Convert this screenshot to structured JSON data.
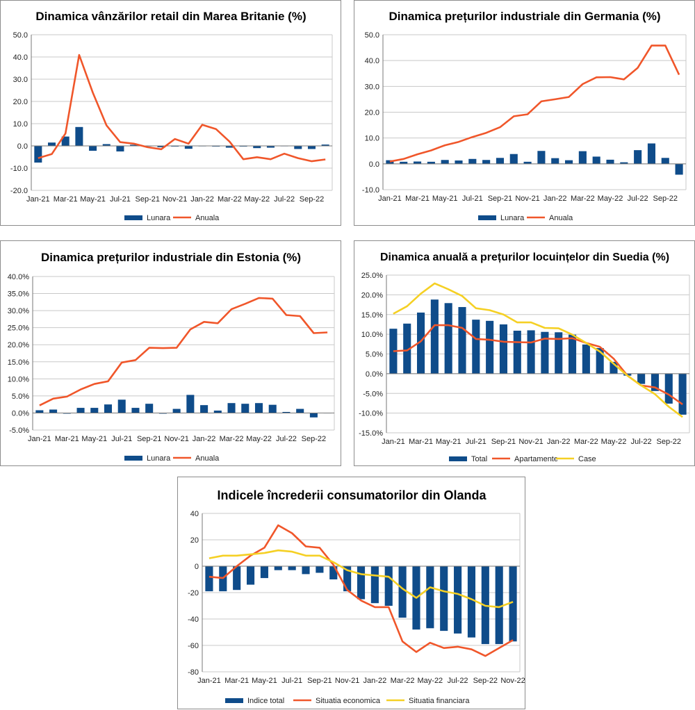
{
  "colors": {
    "bar": "#0f4c8a",
    "red": "#f0562a",
    "yellow": "#f5d024",
    "grid": "#c8c8c8",
    "axis": "#777777"
  },
  "chart_data": [
    {
      "id": "uk",
      "type": "bar+line",
      "title": "Dinamica vânzărilor retail din Marea Britanie (%)",
      "ylim": [
        -20,
        50
      ],
      "ystep": 10,
      "ydecimals": 1,
      "ysuffix": "",
      "x_tick_labels": [
        "Jan-21",
        "Mar-21",
        "May-21",
        "Jul-21",
        "Sep-21",
        "Nov-21",
        "Jan-22",
        "Mar-22",
        "May-22",
        "Jul-22",
        "Sep-22"
      ],
      "n_points": 22,
      "bars": [
        {
          "name": "Lunara",
          "values": [
            -7.5,
            1.5,
            4.2,
            8.5,
            -2.2,
            0.8,
            -2.5,
            0.5,
            -0.2,
            -0.6,
            -0.3,
            -1.3,
            -0.2,
            -0.3,
            -0.8,
            -0.3,
            -1.0,
            -0.8,
            -0.1,
            -1.4,
            -1.4,
            0.6
          ]
        }
      ],
      "lines": [
        {
          "name": "Anuala",
          "color": "red",
          "values": [
            -5.5,
            -3.7,
            5.6,
            40.9,
            23.9,
            9.2,
            1.7,
            1.0,
            -0.6,
            -1.5,
            3.1,
            1.0,
            9.5,
            7.6,
            1.9,
            -6.0,
            -5.1,
            -6.0,
            -3.5,
            -5.5,
            -6.9,
            -6.1
          ]
        }
      ],
      "legend": [
        "Lunara",
        "Anuala"
      ]
    },
    {
      "id": "germany",
      "type": "bar+line",
      "title": "Dinamica prețurilor industriale din Germania (%)",
      "ylim": [
        -10,
        50
      ],
      "ystep": 10,
      "ydecimals": 1,
      "ysuffix": "",
      "x_tick_labels": [
        "Jan-21",
        "Mar-21",
        "May-21",
        "Jul-21",
        "Sep-21",
        "Nov-21",
        "Jan-22",
        "Mar-22",
        "May-22",
        "Jul-22",
        "Sep-22"
      ],
      "n_points": 22,
      "bars": [
        {
          "name": "Lunara",
          "values": [
            1.4,
            0.8,
            0.9,
            0.8,
            1.5,
            1.3,
            1.9,
            1.5,
            2.3,
            3.8,
            0.8,
            5.0,
            2.2,
            1.4,
            4.9,
            2.8,
            1.6,
            0.6,
            5.3,
            7.9,
            2.3,
            -4.2
          ]
        }
      ],
      "lines": [
        {
          "name": "Anuala",
          "color": "red",
          "values": [
            0.9,
            1.9,
            3.7,
            5.2,
            7.2,
            8.5,
            10.4,
            12.0,
            14.2,
            18.4,
            19.2,
            24.2,
            25.0,
            25.9,
            30.9,
            33.5,
            33.6,
            32.7,
            37.2,
            45.8,
            45.8,
            34.5
          ]
        }
      ],
      "legend": [
        "Lunara",
        "Anuala"
      ]
    },
    {
      "id": "estonia",
      "type": "bar+line",
      "title": "Dinamica prețurilor industriale din Estonia (%)",
      "ylim": [
        -5,
        40
      ],
      "ystep": 5,
      "ydecimals": 1,
      "ysuffix": "%",
      "x_tick_labels": [
        "Jan-21",
        "Mar-21",
        "May-21",
        "Jul-21",
        "Sep-21",
        "Nov-21",
        "Jan-22",
        "Mar-22",
        "May-22",
        "Jul-22",
        "Sep-22"
      ],
      "n_points": 22,
      "bars": [
        {
          "name": "Lunara",
          "values": [
            0.8,
            1.0,
            -0.2,
            1.5,
            1.5,
            2.5,
            3.9,
            1.5,
            2.7,
            -0.2,
            1.2,
            5.3,
            2.3,
            0.7,
            2.9,
            2.7,
            2.9,
            2.4,
            0.3,
            1.2,
            -1.3,
            0.0
          ]
        }
      ],
      "lines": [
        {
          "name": "Anuala",
          "color": "red",
          "values": [
            2.2,
            4.2,
            4.8,
            6.9,
            8.5,
            9.3,
            14.8,
            15.5,
            19.1,
            19.0,
            19.1,
            24.5,
            26.7,
            26.3,
            30.4,
            32.0,
            33.7,
            33.5,
            28.7,
            28.4,
            23.4,
            23.6
          ]
        }
      ],
      "legend": [
        "Lunara",
        "Anuala"
      ]
    },
    {
      "id": "sweden",
      "type": "bar+line",
      "title": "Dinamica anuală a prețurilor locuințelor din Suedia (%)",
      "ylim": [
        -15,
        25
      ],
      "ystep": 5,
      "ydecimals": 1,
      "ysuffix": "%",
      "x_tick_labels": [
        "Jan-21",
        "Mar-21",
        "May-21",
        "Jul-21",
        "Sep-21",
        "Nov-21",
        "Jan-22",
        "Mar-22",
        "May-22",
        "Jul-22",
        "Sep-22"
      ],
      "n_points": 22,
      "bars": [
        {
          "name": "Total",
          "values": [
            11.4,
            12.7,
            15.5,
            18.8,
            17.9,
            16.9,
            13.7,
            13.4,
            12.5,
            10.9,
            11.0,
            10.6,
            10.5,
            9.9,
            7.4,
            6.5,
            3.0,
            -0.5,
            -2.6,
            -4.4,
            -7.6,
            -10.4
          ]
        }
      ],
      "lines": [
        {
          "name": "Apartamente",
          "color": "red",
          "values": [
            5.7,
            5.9,
            8.2,
            12.3,
            12.3,
            11.6,
            8.8,
            8.6,
            8.1,
            8.0,
            7.9,
            8.9,
            8.8,
            9.0,
            7.8,
            6.8,
            3.8,
            -0.5,
            -3.0,
            -3.5,
            -5.3,
            -7.8
          ]
        },
        {
          "name": "Case",
          "color": "yellow",
          "values": [
            15.2,
            17.1,
            20.3,
            22.9,
            21.4,
            19.7,
            16.6,
            16.1,
            15.0,
            13.0,
            13.0,
            11.6,
            11.5,
            9.9,
            7.8,
            5.6,
            2.5,
            -0.5,
            -3.0,
            -5.2,
            -8.4,
            -11.0
          ]
        }
      ],
      "legend": [
        "Total",
        "Apartamente",
        "Case"
      ]
    },
    {
      "id": "netherlands",
      "type": "bar+line",
      "title": "Indicele încrederii consumatorilor din Olanda",
      "ylim": [
        -80,
        40
      ],
      "ystep": 20,
      "ydecimals": 0,
      "ysuffix": "",
      "x_tick_labels": [
        "Jan-21",
        "Mar-21",
        "May-21",
        "Jul-21",
        "Sep-21",
        "Nov-21",
        "Jan-22",
        "Mar-22",
        "May-22",
        "Jul-22",
        "Sep-22",
        "Nov-22"
      ],
      "n_points": 23,
      "bars": [
        {
          "name": "Indice total",
          "values": [
            -19,
            -19,
            -18,
            -14,
            -9,
            -3,
            -3,
            -6,
            -5,
            -10,
            -19,
            -25,
            -28,
            -30,
            -39,
            -48,
            -47,
            -49,
            -51,
            -54,
            -59,
            -59,
            -57
          ]
        }
      ],
      "lines": [
        {
          "name": "Situatia economica",
          "color": "red",
          "values": [
            -8,
            -9,
            0,
            8,
            14,
            31,
            25,
            15,
            14,
            1,
            -18,
            -26,
            -31,
            -31,
            -57,
            -65,
            -58,
            -62,
            -61,
            -63,
            -68,
            -62,
            -56
          ]
        },
        {
          "name": "Situatia financiara",
          "color": "yellow",
          "values": [
            6,
            8,
            8,
            9,
            10,
            12,
            11,
            8,
            8,
            3,
            -3,
            -6,
            -7,
            -8,
            -17,
            -24,
            -16,
            -19,
            -21,
            -25,
            -30,
            -31,
            -27
          ]
        }
      ],
      "legend": [
        "Indice total",
        "Situatia economica",
        "Situatia financiara"
      ]
    }
  ]
}
